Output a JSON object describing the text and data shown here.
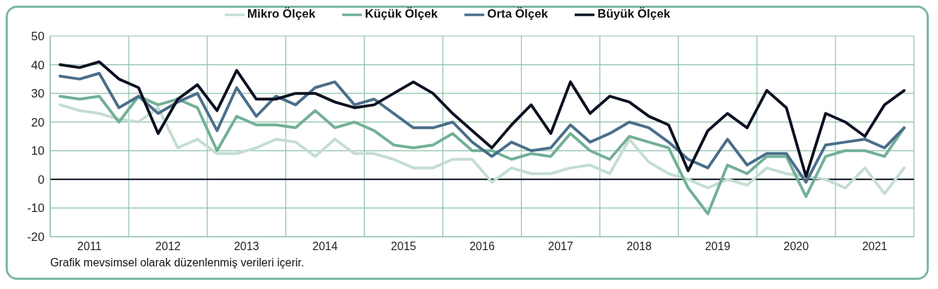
{
  "chart_data": {
    "type": "line",
    "x": [
      2011.125,
      2011.375,
      2011.625,
      2011.875,
      2012.125,
      2012.375,
      2012.625,
      2012.875,
      2013.125,
      2013.375,
      2013.625,
      2013.875,
      2014.125,
      2014.375,
      2014.625,
      2014.875,
      2015.125,
      2015.375,
      2015.625,
      2015.875,
      2016.125,
      2016.375,
      2016.625,
      2016.875,
      2017.125,
      2017.375,
      2017.625,
      2017.875,
      2018.125,
      2018.375,
      2018.625,
      2018.875,
      2019.125,
      2019.375,
      2019.625,
      2019.875,
      2020.125,
      2020.375,
      2020.625,
      2020.875,
      2021.125,
      2021.375,
      2021.625,
      2021.875
    ],
    "series": [
      {
        "name": "Mikro Ölçek",
        "color": "#c4ddd1",
        "values": [
          26,
          24,
          23,
          21,
          20,
          25,
          11,
          14,
          9,
          9,
          11,
          14,
          13,
          8,
          14,
          9,
          9,
          7,
          4,
          4,
          7,
          7,
          -1,
          4,
          2,
          2,
          4,
          5,
          2,
          14,
          6,
          2,
          0,
          -3,
          0,
          -2,
          4,
          2,
          1,
          0,
          -3,
          4,
          -5,
          4
        ]
      },
      {
        "name": "Küçük Ölçek",
        "color": "#72b096",
        "values": [
          29,
          28,
          29,
          20,
          29,
          26,
          28,
          25,
          10,
          22,
          19,
          19,
          18,
          24,
          18,
          20,
          17,
          12,
          11,
          12,
          16,
          10,
          10,
          7,
          9,
          8,
          16,
          10,
          7,
          15,
          13,
          11,
          -3,
          -12,
          5,
          2,
          8,
          8,
          -6,
          8,
          10,
          10,
          8,
          18
        ]
      },
      {
        "name": "Orta Ölçek",
        "color": "#4a6e8a",
        "values": [
          36,
          35,
          37,
          25,
          29,
          23,
          27,
          30,
          17,
          32,
          22,
          29,
          26,
          32,
          34,
          26,
          28,
          23,
          18,
          18,
          20,
          13,
          8,
          13,
          10,
          11,
          19,
          13,
          16,
          20,
          18,
          13,
          7,
          4,
          14,
          5,
          9,
          9,
          -1,
          12,
          13,
          14,
          11,
          18
        ]
      },
      {
        "name": "Büyük Ölçek",
        "color": "#0b1020",
        "values": [
          40,
          39,
          41,
          35,
          32,
          16,
          28,
          33,
          24,
          38,
          28,
          28,
          30,
          30,
          27,
          25,
          26,
          30,
          34,
          30,
          23,
          17,
          11,
          19,
          26,
          16,
          34,
          23,
          29,
          27,
          22,
          19,
          3,
          17,
          23,
          18,
          31,
          25,
          1,
          23,
          20,
          15,
          26,
          31
        ]
      }
    ],
    "xlim": [
      2011,
      2022
    ],
    "xticks": [
      {
        "value": 2011,
        "label": null
      },
      {
        "value": 2011.5,
        "label": "2011"
      },
      {
        "value": 2012,
        "label": null
      },
      {
        "value": 2012.5,
        "label": "2012"
      },
      {
        "value": 2013,
        "label": null
      },
      {
        "value": 2013.5,
        "label": "2013"
      },
      {
        "value": 2014,
        "label": null
      },
      {
        "value": 2014.5,
        "label": "2014"
      },
      {
        "value": 2015,
        "label": null
      },
      {
        "value": 2015.5,
        "label": "2015"
      },
      {
        "value": 2016,
        "label": null
      },
      {
        "value": 2016.5,
        "label": "2016"
      },
      {
        "value": 2017,
        "label": null
      },
      {
        "value": 2017.5,
        "label": "2017"
      },
      {
        "value": 2018,
        "label": null
      },
      {
        "value": 2018.5,
        "label": "2018"
      },
      {
        "value": 2019,
        "label": null
      },
      {
        "value": 2019.5,
        "label": "2019"
      },
      {
        "value": 2020,
        "label": null
      },
      {
        "value": 2020.5,
        "label": "2020"
      },
      {
        "value": 2021,
        "label": null
      },
      {
        "value": 2021.5,
        "label": "2021"
      },
      {
        "value": 2022,
        "label": null
      }
    ],
    "ylim": [
      -20,
      50
    ],
    "yticks": [
      -20,
      -10,
      0,
      10,
      20,
      30,
      40,
      50
    ],
    "ref_lines": [
      {
        "axis": "y",
        "value": 0,
        "color": "#0b1020"
      }
    ],
    "grid": true,
    "legend": "top",
    "marker": "none",
    "line_style": "solid",
    "annotations": [
      "Grafik mevsimsel olarak düzenlenmiş verileri içerir."
    ]
  }
}
